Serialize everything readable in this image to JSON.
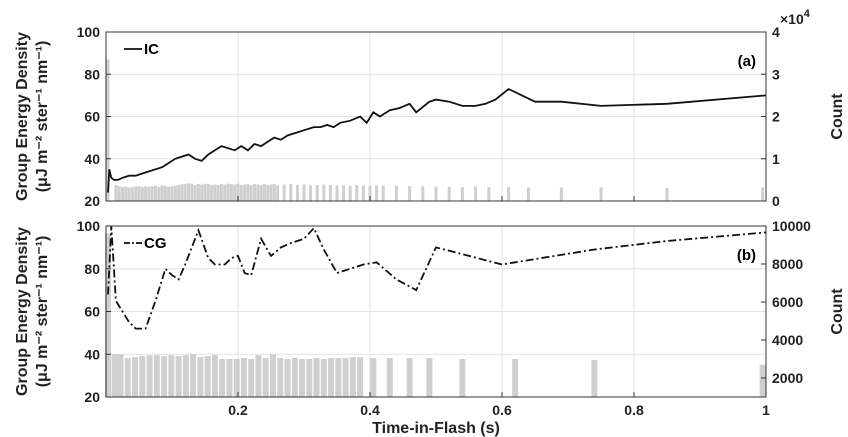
{
  "colors": {
    "line": "#111111",
    "bar": "#cfcfcf",
    "axis": "#333333",
    "grid": "#e2e2e2"
  },
  "shared": {
    "xlabel": "Time-in-Flash (s)"
  },
  "chart_data": [
    {
      "type": "line+bar",
      "panel_label": "(a)",
      "legend": "IC",
      "line_style": "solid",
      "ylabel_left_line1": "Group Energy Density",
      "ylabel_left_line2": "(μJ m⁻² ster⁻¹ nm⁻¹)",
      "ylabel_right": "Count",
      "right_multiplier": "×10",
      "right_multiplier_exp": "4",
      "xlim": [
        0,
        1
      ],
      "ylim_left": [
        20,
        100
      ],
      "ylim_right": [
        0,
        4
      ],
      "x_ticks": [
        0.2,
        0.4,
        0.6,
        0.8,
        1
      ],
      "y_ticks_left": [
        20,
        40,
        60,
        80,
        100
      ],
      "y_ticks_right": [
        0,
        1,
        2,
        3,
        4
      ],
      "show_x_tick_labels": false,
      "line_x": [
        0.003,
        0.005,
        0.008,
        0.012,
        0.018,
        0.025,
        0.035,
        0.045,
        0.055,
        0.065,
        0.075,
        0.085,
        0.095,
        0.105,
        0.115,
        0.125,
        0.135,
        0.145,
        0.155,
        0.165,
        0.175,
        0.185,
        0.195,
        0.205,
        0.215,
        0.225,
        0.235,
        0.245,
        0.255,
        0.265,
        0.275,
        0.285,
        0.295,
        0.305,
        0.315,
        0.325,
        0.335,
        0.345,
        0.355,
        0.37,
        0.385,
        0.395,
        0.405,
        0.415,
        0.43,
        0.445,
        0.46,
        0.47,
        0.49,
        0.5,
        0.52,
        0.54,
        0.56,
        0.575,
        0.59,
        0.61,
        0.65,
        0.69,
        0.75,
        0.85,
        1.0
      ],
      "line_y": [
        24,
        35,
        31,
        30,
        30,
        31,
        32,
        32,
        33,
        34,
        35,
        36,
        38,
        40,
        41,
        42,
        40,
        39,
        42,
        44,
        46,
        45,
        44,
        46,
        44,
        47,
        46,
        48,
        50,
        49,
        51,
        52,
        53,
        54,
        55,
        55,
        56,
        55,
        57,
        58,
        60,
        57,
        62,
        60,
        63,
        64,
        66,
        62,
        67,
        68,
        67,
        65,
        65,
        66,
        68,
        73,
        67,
        67,
        65,
        66,
        70
      ],
      "bar_x": [
        0.003,
        0.015,
        0.02,
        0.025,
        0.03,
        0.035,
        0.04,
        0.045,
        0.05,
        0.055,
        0.06,
        0.065,
        0.07,
        0.075,
        0.08,
        0.085,
        0.09,
        0.095,
        0.1,
        0.105,
        0.11,
        0.115,
        0.12,
        0.125,
        0.13,
        0.135,
        0.14,
        0.145,
        0.15,
        0.155,
        0.16,
        0.165,
        0.17,
        0.175,
        0.18,
        0.185,
        0.19,
        0.195,
        0.2,
        0.205,
        0.21,
        0.215,
        0.22,
        0.225,
        0.23,
        0.235,
        0.24,
        0.245,
        0.25,
        0.255,
        0.26,
        0.27,
        0.28,
        0.29,
        0.3,
        0.31,
        0.32,
        0.33,
        0.34,
        0.35,
        0.36,
        0.37,
        0.38,
        0.39,
        0.4,
        0.41,
        0.42,
        0.44,
        0.46,
        0.48,
        0.5,
        0.52,
        0.54,
        0.56,
        0.58,
        0.61,
        0.64,
        0.69,
        0.75,
        0.85,
        0.995
      ],
      "bar_y": [
        3.35,
        0.38,
        0.35,
        0.33,
        0.34,
        0.32,
        0.33,
        0.34,
        0.35,
        0.33,
        0.35,
        0.34,
        0.35,
        0.36,
        0.33,
        0.37,
        0.36,
        0.34,
        0.35,
        0.36,
        0.38,
        0.4,
        0.4,
        0.42,
        0.41,
        0.38,
        0.4,
        0.39,
        0.41,
        0.4,
        0.38,
        0.39,
        0.38,
        0.4,
        0.39,
        0.41,
        0.4,
        0.39,
        0.41,
        0.38,
        0.39,
        0.4,
        0.38,
        0.4,
        0.39,
        0.38,
        0.4,
        0.38,
        0.39,
        0.4,
        0.37,
        0.39,
        0.4,
        0.38,
        0.39,
        0.37,
        0.38,
        0.39,
        0.38,
        0.37,
        0.37,
        0.36,
        0.38,
        0.37,
        0.36,
        0.37,
        0.36,
        0.36,
        0.35,
        0.35,
        0.34,
        0.34,
        0.33,
        0.34,
        0.33,
        0.33,
        0.32,
        0.32,
        0.32,
        0.31,
        0.32
      ]
    },
    {
      "type": "line+bar",
      "panel_label": "(b)",
      "legend": "CG",
      "line_style": "dashdot",
      "ylabel_left_line1": "Group Energy Density",
      "ylabel_left_line2": "(μJ m⁻² ster⁻¹ nm⁻¹)",
      "ylabel_right": "Count",
      "xlim": [
        0,
        1
      ],
      "ylim_left": [
        20,
        100
      ],
      "ylim_right": [
        1000,
        10000
      ],
      "x_ticks": [
        0.2,
        0.4,
        0.6,
        0.8,
        1
      ],
      "x_tick_labels": [
        "0.2",
        "0.4",
        "0.6",
        "0.8",
        "1"
      ],
      "y_ticks_left": [
        20,
        40,
        60,
        80,
        100
      ],
      "y_ticks_right": [
        2000,
        4000,
        6000,
        8000,
        10000
      ],
      "show_x_tick_labels": true,
      "line_x": [
        0.003,
        0.008,
        0.015,
        0.025,
        0.035,
        0.045,
        0.06,
        0.075,
        0.09,
        0.1,
        0.11,
        0.12,
        0.13,
        0.14,
        0.155,
        0.165,
        0.18,
        0.19,
        0.2,
        0.21,
        0.22,
        0.235,
        0.25,
        0.265,
        0.28,
        0.3,
        0.315,
        0.33,
        0.35,
        0.37,
        0.39,
        0.41,
        0.44,
        0.47,
        0.5,
        0.55,
        0.6,
        0.62,
        0.74,
        0.85,
        1.0
      ],
      "line_y": [
        68,
        100,
        65,
        60,
        55,
        52,
        52,
        65,
        80,
        77,
        75,
        82,
        90,
        98,
        85,
        82,
        82,
        85,
        86,
        78,
        77,
        94,
        86,
        90,
        92,
        94,
        99,
        89,
        78,
        80,
        82,
        83,
        75,
        70,
        90,
        86,
        82,
        83,
        89,
        93,
        97
      ],
      "bar_x": [
        0.003,
        0.013,
        0.022,
        0.033,
        0.044,
        0.055,
        0.066,
        0.077,
        0.088,
        0.099,
        0.11,
        0.121,
        0.132,
        0.143,
        0.154,
        0.165,
        0.176,
        0.187,
        0.198,
        0.209,
        0.22,
        0.231,
        0.242,
        0.253,
        0.264,
        0.275,
        0.286,
        0.297,
        0.308,
        0.319,
        0.33,
        0.341,
        0.352,
        0.363,
        0.374,
        0.385,
        0.405,
        0.43,
        0.46,
        0.49,
        0.54,
        0.62,
        0.74,
        0.995
      ],
      "bar_y": [
        9600,
        3250,
        3250,
        3050,
        3100,
        3150,
        3200,
        3200,
        3150,
        3200,
        3150,
        3200,
        3250,
        3100,
        3150,
        3200,
        3000,
        3000,
        3000,
        3050,
        3000,
        3200,
        3050,
        3250,
        3050,
        3000,
        3050,
        3000,
        3000,
        3050,
        3000,
        3050,
        3050,
        3050,
        3100,
        3100,
        3050,
        3050,
        3050,
        3050,
        3000,
        3000,
        2950,
        2700
      ]
    }
  ]
}
